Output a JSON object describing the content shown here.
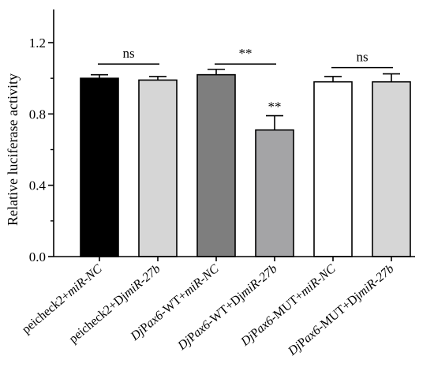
{
  "chart_data": {
    "type": "bar",
    "ylabel": "Relative luciferase activity",
    "ylim": [
      0,
      1.4
    ],
    "yticks": [
      "0.0",
      "0.4",
      "0.8",
      "1.2"
    ],
    "categories": [
      "peicheck2+miR-NC",
      "peicheck2+DjmiR-27b",
      "DjPax6-WT+miR-NC",
      "DjPax6-WT+DjmiR-27b",
      "DjPax6-MUT+miR-NC",
      "DjPax6-MUT+DjmiR-27b"
    ],
    "category_parts": [
      [
        {
          "t": "peicheck2+",
          "i": false
        },
        {
          "t": "miR-NC",
          "i": true
        }
      ],
      [
        {
          "t": "peicheck2+Dj",
          "i": false
        },
        {
          "t": "miR-27b",
          "i": true
        }
      ],
      [
        {
          "t": "Dj",
          "i": true
        },
        {
          "t": "P",
          "i": false
        },
        {
          "t": "ax6",
          "i": true
        },
        {
          "t": "-WT+",
          "i": false
        },
        {
          "t": "miR-NC",
          "i": true
        }
      ],
      [
        {
          "t": "Dj",
          "i": true
        },
        {
          "t": "P",
          "i": false
        },
        {
          "t": "ax6",
          "i": true
        },
        {
          "t": "-WT+Dj",
          "i": false
        },
        {
          "t": "miR-27b",
          "i": true
        }
      ],
      [
        {
          "t": "Dj",
          "i": true
        },
        {
          "t": "P",
          "i": false
        },
        {
          "t": "ax6",
          "i": true
        },
        {
          "t": "-MUT+",
          "i": false
        },
        {
          "t": "miR-NC",
          "i": true
        }
      ],
      [
        {
          "t": "Dj",
          "i": true
        },
        {
          "t": "P",
          "i": false
        },
        {
          "t": "ax6",
          "i": true
        },
        {
          "t": "-MUT+Dj",
          "i": false
        },
        {
          "t": "miR-27b",
          "i": true
        }
      ]
    ],
    "values": [
      1.0,
      0.99,
      1.02,
      0.71,
      0.98,
      0.98
    ],
    "errors": [
      0.02,
      0.02,
      0.03,
      0.08,
      0.03,
      0.045
    ],
    "colors": [
      "#000000",
      "#d6d6d6",
      "#7e7e7e",
      "#a4a4a6",
      "#ffffff",
      "#d6d6d6"
    ],
    "significance": [
      {
        "label": "ns",
        "from": 0,
        "to": 1,
        "y": 1.08
      },
      {
        "label": "**",
        "from": 2,
        "to": 3,
        "y": 1.08
      },
      {
        "label": "ns",
        "from": 4,
        "to": 5,
        "y": 1.06
      }
    ],
    "bar_annotations": [
      {
        "label": "**",
        "index": 3
      }
    ],
    "grid": false,
    "legend": "none"
  }
}
